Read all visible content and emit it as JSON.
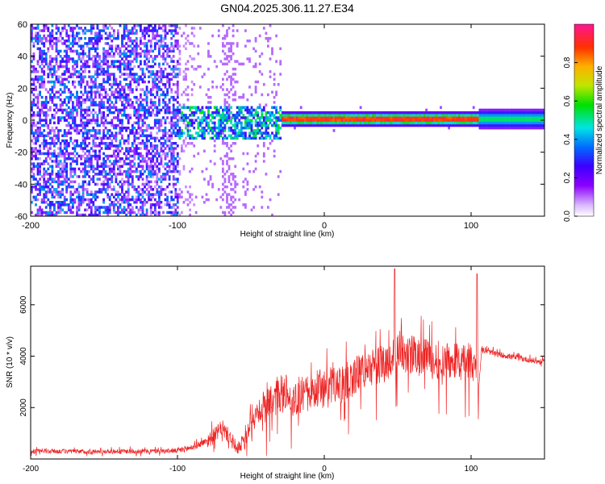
{
  "chart_data": [
    {
      "type": "heatmap",
      "title": "GN04.2025.306.11.27.E34",
      "xlabel": "Height of straight line (km)",
      "ylabel": "Frequency (Hz)",
      "xlim": [
        -200,
        150
      ],
      "ylim": [
        -60,
        60
      ],
      "x_ticks": [
        -200,
        -100,
        0,
        100
      ],
      "x_tick_labels": [
        "-200",
        "-100",
        "0",
        "100"
      ],
      "y_ticks": [
        -60,
        -40,
        -20,
        0,
        20,
        40,
        60
      ],
      "y_tick_labels": [
        "-60",
        "-40",
        "-20",
        "0",
        "20",
        "40",
        "60"
      ],
      "colorbar": {
        "label": "Normalized spectral amplitude",
        "range": [
          0,
          1
        ],
        "ticks": [
          0.0,
          0.2,
          0.4,
          0.6,
          0.8
        ],
        "tick_labels": [
          "0.0",
          "0.2",
          "0.4",
          "0.6",
          "0.8"
        ],
        "colormap": [
          "#ffffff",
          "#9b30ff",
          "#4b00ff",
          "#0060ff",
          "#00e0e0",
          "#00e000",
          "#c8e000",
          "#ffb000",
          "#ff4000",
          "#ff1080"
        ]
      },
      "regions": [
        {
          "x_range": [
            -200,
            -100
          ],
          "f_range": [
            -60,
            60
          ],
          "amplitude": 0.05,
          "description_level": "scattered noise"
        },
        {
          "x_range": [
            -100,
            -30
          ],
          "f_range": [
            -15,
            8
          ],
          "amplitude": 0.3,
          "description_level": "emerging signal"
        },
        {
          "x_range": [
            -30,
            105
          ],
          "f_range": [
            -2,
            2
          ],
          "amplitude": 0.9,
          "description_level": "strong line near 0 Hz"
        },
        {
          "x_range": [
            105,
            150
          ],
          "f_range": [
            -4,
            4
          ],
          "amplitude": 0.45,
          "description_level": "steady band"
        }
      ]
    },
    {
      "type": "line",
      "xlabel": "Height of straight line (km)",
      "ylabel": "SNR (10 * v/v)",
      "xlim": [
        -200,
        150
      ],
      "ylim": [
        0,
        7500
      ],
      "x_ticks": [
        -200,
        -100,
        0,
        100
      ],
      "x_tick_labels": [
        "-200",
        "-100",
        "0",
        "100"
      ],
      "y_ticks": [
        2000,
        4000,
        6000
      ],
      "y_tick_labels": [
        "2000",
        "4000",
        "6000"
      ],
      "series": [
        {
          "name": "SNR",
          "color": "#ee2222",
          "x": [
            -200,
            -180,
            -160,
            -140,
            -120,
            -100,
            -90,
            -80,
            -75,
            -70,
            -65,
            -60,
            -55,
            -50,
            -45,
            -40,
            -35,
            -30,
            -25,
            -20,
            -15,
            -10,
            -5,
            0,
            5,
            10,
            15,
            20,
            25,
            30,
            35,
            40,
            45,
            50,
            55,
            60,
            65,
            70,
            75,
            80,
            85,
            90,
            95,
            100,
            103,
            105,
            107,
            110,
            120,
            130,
            140,
            150
          ],
          "values": [
            300,
            300,
            280,
            300,
            300,
            320,
            450,
            700,
            900,
            1200,
            900,
            400,
            700,
            1400,
            1800,
            2200,
            2400,
            2500,
            2600,
            2400,
            2500,
            2600,
            2800,
            2700,
            2900,
            2800,
            3000,
            3200,
            3400,
            3500,
            3600,
            3700,
            3900,
            4200,
            4000,
            4100,
            3900,
            4000,
            3800,
            3900,
            3800,
            3900,
            3700,
            3800,
            3600,
            2600,
            4200,
            4200,
            4050,
            3950,
            3850,
            3750
          ]
        }
      ]
    }
  ]
}
